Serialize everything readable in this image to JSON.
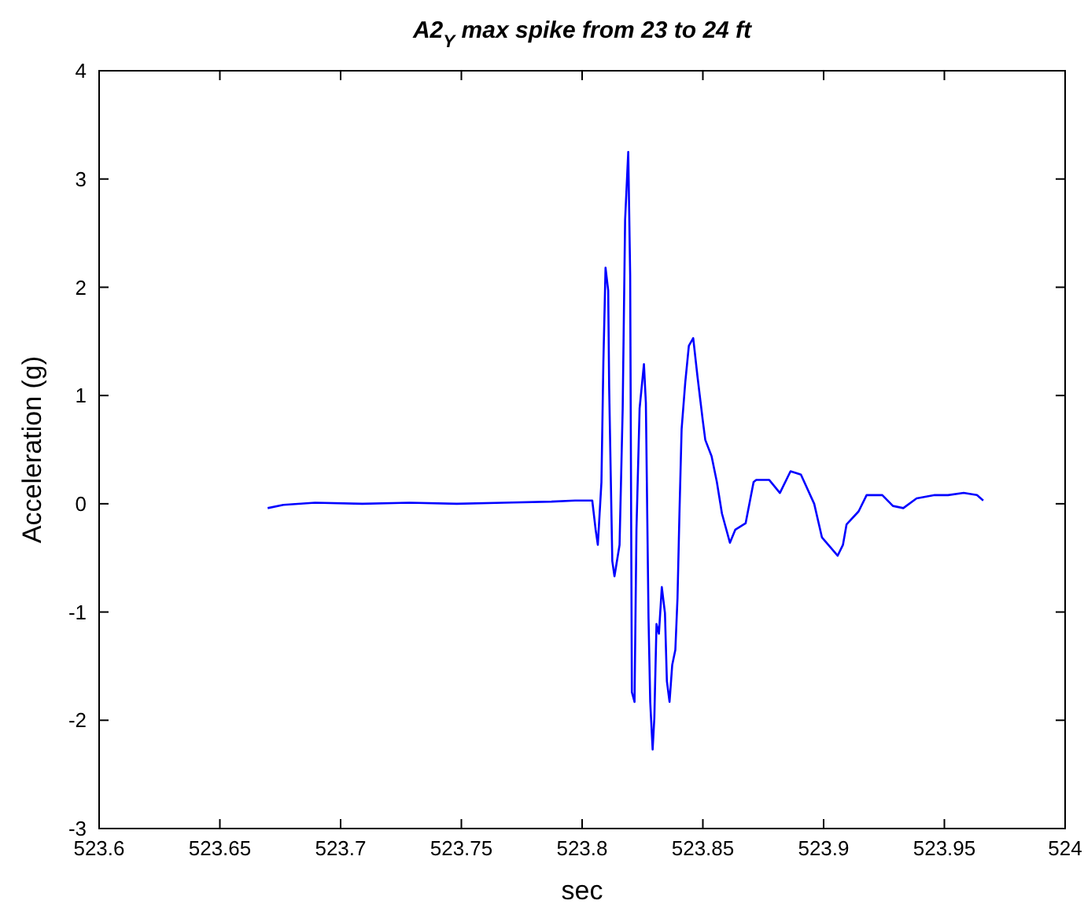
{
  "chart_data": {
    "type": "line",
    "title": "A2$_{Y}$ max spike from 23 to 24 ft",
    "xlabel": "sec",
    "ylabel": "Acceleration (g)",
    "xlim": [
      523.6,
      524
    ],
    "xticks": [
      523.6,
      523.65,
      523.7,
      523.75,
      523.8,
      523.85,
      523.9,
      523.95,
      524
    ],
    "ylim": [
      -3,
      4
    ],
    "yticks": [
      -3,
      -2,
      -1,
      0,
      1,
      2,
      3,
      4
    ],
    "marker": "none",
    "line_style": "solid",
    "series": [
      {
        "color": "#0000ff",
        "x": [
          523.6698,
          523.6763,
          523.6894,
          523.709,
          523.7285,
          523.7481,
          523.7677,
          523.7873,
          523.7971,
          523.8042,
          523.8056,
          523.8065,
          523.808,
          523.8088,
          523.8097,
          523.8108,
          523.8112,
          523.8125,
          523.8134,
          523.8155,
          523.8168,
          523.8178,
          523.8191,
          523.8199,
          523.8206,
          523.8217,
          523.8225,
          523.8238,
          523.8256,
          523.8264,
          523.8275,
          523.8282,
          523.8292,
          523.8299,
          523.8308,
          523.8318,
          523.833,
          523.8343,
          523.8351,
          523.8362,
          523.8373,
          523.8386,
          523.8395,
          523.8403,
          523.8412,
          523.8427,
          523.8442,
          523.846,
          523.8478,
          523.8499,
          523.851,
          523.8536,
          523.8558,
          523.8579,
          523.8612,
          523.8634,
          523.8677,
          523.871,
          523.8721,
          523.8775,
          523.8819,
          523.8863,
          523.8906,
          523.8961,
          523.8993,
          523.9058,
          523.908,
          523.9095,
          523.9145,
          523.9178,
          523.9243,
          523.9287,
          523.933,
          523.9385,
          523.946,
          523.9515,
          523.958,
          523.9635,
          523.9661
        ],
        "values": [
          -0.04,
          -0.01,
          0.01,
          0,
          0.01,
          0,
          0.01,
          0.02,
          0.03,
          0.03,
          -0.24,
          -0.38,
          0.2,
          1.31,
          2.18,
          1.97,
          1.07,
          -0.53,
          -0.67,
          -0.38,
          0.88,
          2.62,
          3.25,
          2.11,
          -1.74,
          -1.83,
          -0.24,
          0.88,
          1.29,
          0.93,
          -1.06,
          -1.83,
          -2.27,
          -1.98,
          -1.11,
          -1.2,
          -0.77,
          -1.01,
          -1.64,
          -1.83,
          -1.49,
          -1.35,
          -0.87,
          -0.09,
          0.69,
          1.12,
          1.46,
          1.53,
          1.17,
          0.78,
          0.59,
          0.44,
          0.2,
          -0.09,
          -0.36,
          -0.24,
          -0.18,
          0.2,
          0.22,
          0.22,
          0.1,
          0.3,
          0.27,
          0,
          -0.31,
          -0.48,
          -0.38,
          -0.19,
          -0.07,
          0.08,
          0.08,
          -0.02,
          -0.04,
          0.05,
          0.08,
          0.08,
          0.1,
          0.08,
          0.03
        ]
      }
    ]
  }
}
